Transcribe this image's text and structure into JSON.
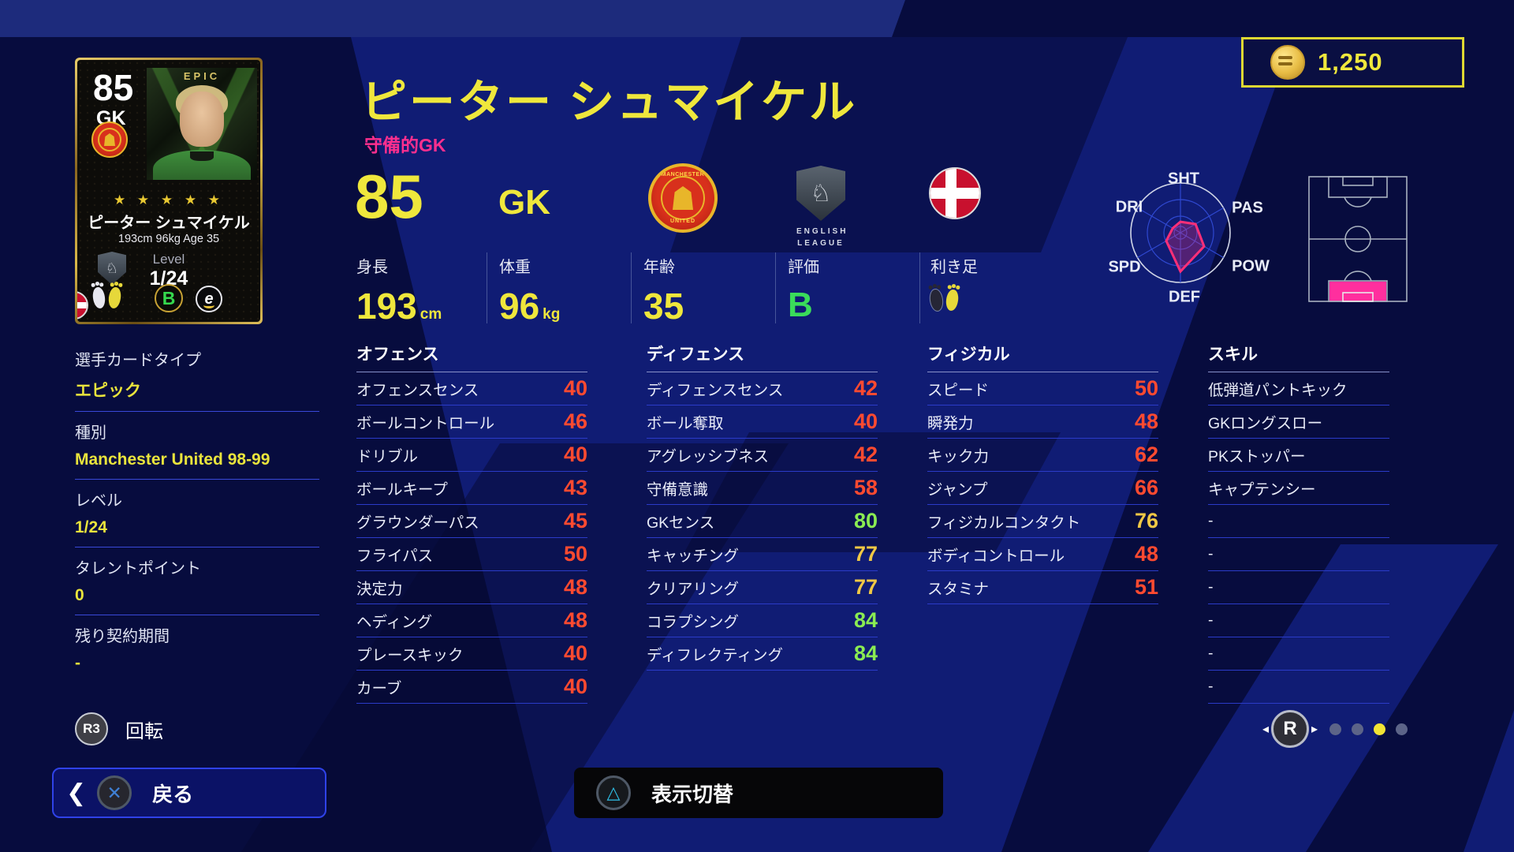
{
  "coins": {
    "amount": "1,250"
  },
  "card": {
    "rating": "85",
    "position": "GK",
    "tier_label": "EPIC",
    "stars": "★ ★ ★ ★ ★",
    "name": "ピーター シュマイケル",
    "bio": "193cm 96kg Age 35",
    "level_label": "Level",
    "level": "1/24",
    "form": "B",
    "logo_letter": "e"
  },
  "header": {
    "name": "ピーター シュマイケル",
    "playstyle": "守備的GK",
    "rating": "85",
    "position": "GK",
    "league_line1": "ENGLISH",
    "league_line2": "LEAGUE",
    "info": {
      "height": {
        "label": "身長",
        "value": "193",
        "unit": "cm"
      },
      "weight": {
        "label": "体重",
        "value": "96",
        "unit": "kg"
      },
      "age": {
        "label": "年齢",
        "value": "35"
      },
      "grade": {
        "label": "評価",
        "value": "B"
      },
      "foot": {
        "label": "利き足"
      }
    }
  },
  "details": [
    {
      "label": "選手カードタイプ",
      "value": "エピック"
    },
    {
      "label": "種別",
      "value": "Manchester United 98-99"
    },
    {
      "label": "レベル",
      "value": "1/24"
    },
    {
      "label": "タレントポイント",
      "value": "0"
    },
    {
      "label": "残り契約期間",
      "value": "-"
    }
  ],
  "stats": {
    "columns": [
      {
        "id": "offense",
        "title": "オフェンス",
        "rows": [
          {
            "label": "オフェンスセンス",
            "value": "40",
            "tier": "low"
          },
          {
            "label": "ボールコントロール",
            "value": "46",
            "tier": "low"
          },
          {
            "label": "ドリブル",
            "value": "40",
            "tier": "low"
          },
          {
            "label": "ボールキープ",
            "value": "43",
            "tier": "low"
          },
          {
            "label": "グラウンダーパス",
            "value": "45",
            "tier": "low"
          },
          {
            "label": "フライパス",
            "value": "50",
            "tier": "low"
          },
          {
            "label": "決定力",
            "value": "48",
            "tier": "low"
          },
          {
            "label": "ヘディング",
            "value": "48",
            "tier": "low"
          },
          {
            "label": "プレースキック",
            "value": "40",
            "tier": "low"
          },
          {
            "label": "カーブ",
            "value": "40",
            "tier": "low"
          }
        ]
      },
      {
        "id": "defense",
        "title": "ディフェンス",
        "rows": [
          {
            "label": "ディフェンスセンス",
            "value": "42",
            "tier": "low"
          },
          {
            "label": "ボール奪取",
            "value": "40",
            "tier": "low"
          },
          {
            "label": "アグレッシブネス",
            "value": "42",
            "tier": "low"
          },
          {
            "label": "守備意識",
            "value": "58",
            "tier": "low"
          },
          {
            "label": "GKセンス",
            "value": "80",
            "tier": "high"
          },
          {
            "label": "キャッチング",
            "value": "77",
            "tier": "mid"
          },
          {
            "label": "クリアリング",
            "value": "77",
            "tier": "mid"
          },
          {
            "label": "コラプシング",
            "value": "84",
            "tier": "high"
          },
          {
            "label": "ディフレクティング",
            "value": "84",
            "tier": "high"
          }
        ]
      },
      {
        "id": "physical",
        "title": "フィジカル",
        "rows": [
          {
            "label": "スピード",
            "value": "50",
            "tier": "low"
          },
          {
            "label": "瞬発力",
            "value": "48",
            "tier": "low"
          },
          {
            "label": "キック力",
            "value": "62",
            "tier": "low"
          },
          {
            "label": "ジャンプ",
            "value": "66",
            "tier": "low"
          },
          {
            "label": "フィジカルコンタクト",
            "value": "76",
            "tier": "mid"
          },
          {
            "label": "ボディコントロール",
            "value": "48",
            "tier": "low"
          },
          {
            "label": "スタミナ",
            "value": "51",
            "tier": "low"
          }
        ]
      },
      {
        "id": "skills",
        "title": "スキル",
        "rows": [
          {
            "label": "低弾道パントキック"
          },
          {
            "label": "GKロングスロー"
          },
          {
            "label": "PKストッパー"
          },
          {
            "label": "キャプテンシー"
          },
          {
            "label": "-"
          },
          {
            "label": "-"
          },
          {
            "label": "-"
          },
          {
            "label": "-"
          },
          {
            "label": "-"
          },
          {
            "label": "-"
          }
        ]
      }
    ]
  },
  "radar": {
    "labels": [
      "SHT",
      "PAS",
      "POW",
      "DEF",
      "SPD",
      "DRI"
    ],
    "values": [
      0.22,
      0.35,
      0.55,
      0.78,
      0.33,
      0.18
    ]
  },
  "footer": {
    "rotate_key": "R3",
    "rotate_label": "回転",
    "back_label": "戻る",
    "cross_glyph": "✕",
    "triangle_glyph": "△",
    "toggle_label": "表示切替",
    "pager_key": "R",
    "dots": [
      "inactive",
      "inactive",
      "active",
      "inactive"
    ]
  },
  "colors": {
    "accent_yellow": "#efe73c",
    "playstyle_pink": "#ff2f8e",
    "stat_low": "#ff4a30",
    "stat_mid": "#f0c845",
    "stat_high": "#8aec52",
    "radar_pink": "#ff2f78",
    "pitch_pink": "#ff2f9e",
    "dot_active": "#f2e434",
    "dot_inactive": "#5c6488"
  }
}
